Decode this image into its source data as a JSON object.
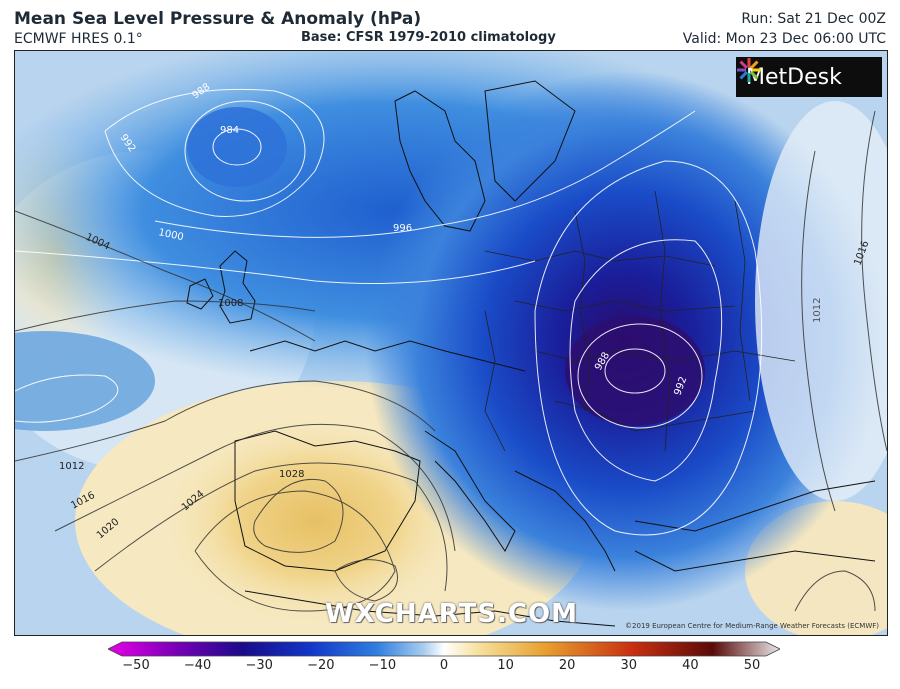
{
  "header": {
    "title": "Mean Sea Level Pressure & Anomaly (hPa)",
    "model": "ECMWF HRES 0.1°",
    "base": "Base: CFSR 1979-2010 climatology",
    "run": "Run: Sat 21 Dec 00Z",
    "valid": "Valid: Mon 23 Dec 06:00 UTC"
  },
  "logo": {
    "text": "MetDesk",
    "icon": "metdesk-star-icon"
  },
  "watermark": "WXCHARTS.COM",
  "copyright": "©2019 European Centre for Medium-Range Weather Forecasts (ECMWF)",
  "isobar_labels": [
    "984",
    "988",
    "992",
    "996",
    "1000",
    "1004",
    "1008",
    "1012",
    "1016",
    "1020",
    "1024",
    "1028"
  ],
  "colorbar": {
    "ticks": [
      "−50",
      "−40",
      "−30",
      "−20",
      "−10",
      "0",
      "10",
      "20",
      "30",
      "40",
      "50"
    ],
    "min": -50,
    "max": 50,
    "colors": [
      "#e800e8",
      "#7a00b8",
      "#1a0a8a",
      "#1236c8",
      "#2f7fe0",
      "#a9cdee",
      "#ffffff",
      "#f6e2a0",
      "#e8a030",
      "#c83010",
      "#5a0a0a",
      "#e8e8e8"
    ]
  }
}
